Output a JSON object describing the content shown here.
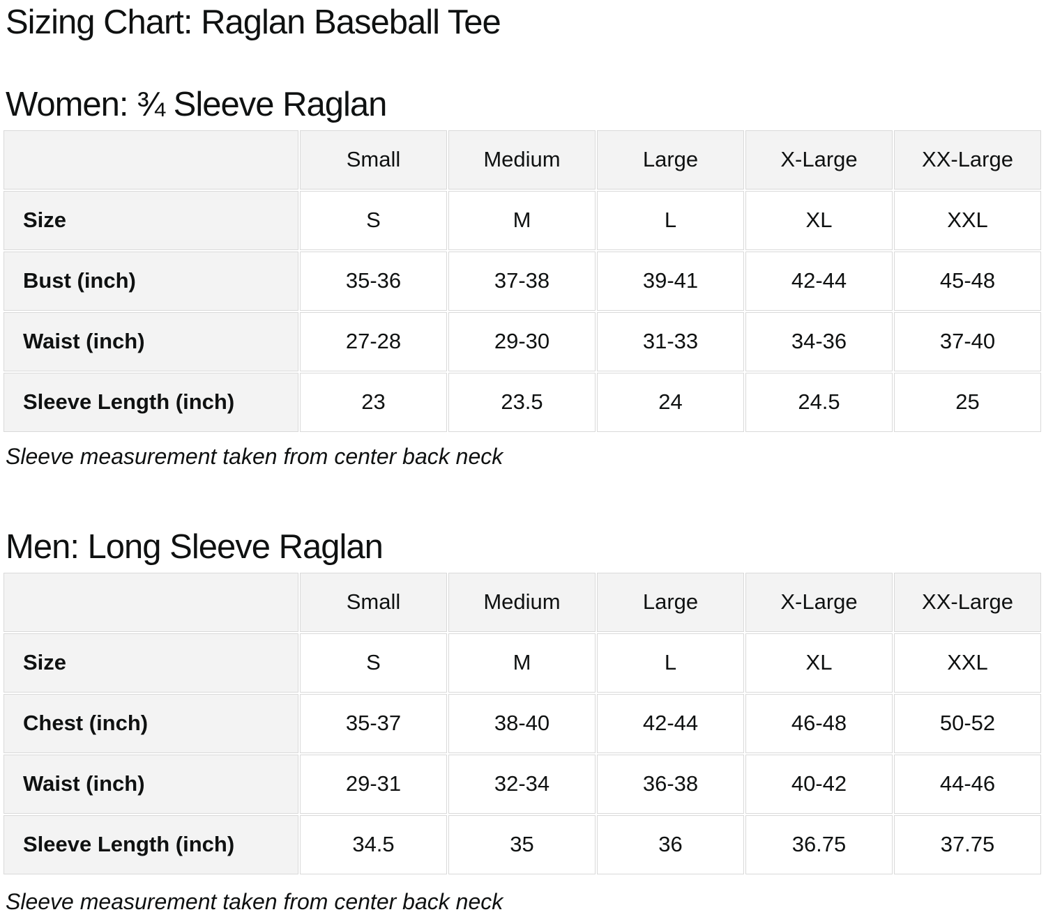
{
  "page": {
    "title": "Sizing Chart: Raglan Baseball Tee"
  },
  "colors": {
    "header_bg": "#f3f3f3",
    "cell_bg": "#ffffff",
    "border": "#d9d9d9",
    "text": "#0f1111"
  },
  "sections": [
    {
      "heading": "Women: ¾ Sleeve Raglan",
      "note": "Sleeve measurement taken from center back neck",
      "table": {
        "column_headers": [
          "",
          "Small",
          "Medium",
          "Large",
          "X-Large",
          "XX-Large"
        ],
        "rows": [
          {
            "label": "Size",
            "values": [
              "S",
              "M",
              "L",
              "XL",
              "XXL"
            ]
          },
          {
            "label": "Bust (inch)",
            "values": [
              "35-36",
              "37-38",
              "39-41",
              "42-44",
              "45-48"
            ]
          },
          {
            "label": "Waist (inch)",
            "values": [
              "27-28",
              "29-30",
              "31-33",
              "34-36",
              "37-40"
            ]
          },
          {
            "label": "Sleeve Length (inch)",
            "values": [
              "23",
              "23.5",
              "24",
              "24.5",
              "25"
            ]
          }
        ]
      }
    },
    {
      "heading": "Men: Long Sleeve Raglan",
      "note": "Sleeve measurement taken from center back neck",
      "table": {
        "column_headers": [
          "",
          "Small",
          "Medium",
          "Large",
          "X-Large",
          "XX-Large"
        ],
        "rows": [
          {
            "label": "Size",
            "values": [
              "S",
              "M",
              "L",
              "XL",
              "XXL"
            ]
          },
          {
            "label": "Chest (inch)",
            "values": [
              "35-37",
              "38-40",
              "42-44",
              "46-48",
              "50-52"
            ]
          },
          {
            "label": "Waist (inch)",
            "values": [
              "29-31",
              "32-34",
              "36-38",
              "40-42",
              "44-46"
            ]
          },
          {
            "label": "Sleeve Length (inch)",
            "values": [
              "34.5",
              "35",
              "36",
              "36.75",
              "37.75"
            ]
          }
        ]
      }
    }
  ]
}
